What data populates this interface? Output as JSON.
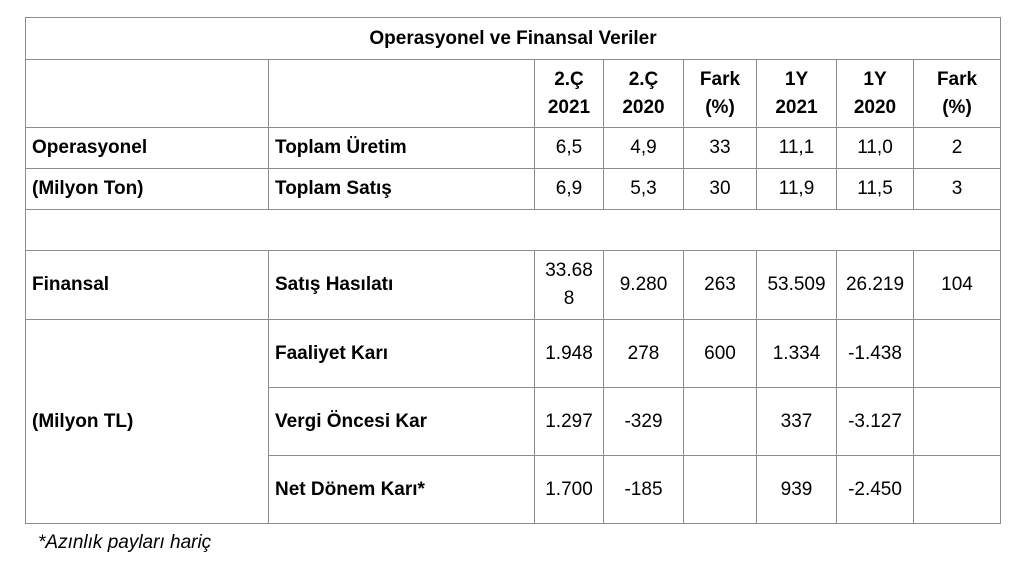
{
  "title": "Operasyonel ve Finansal Veriler",
  "columns": [
    {
      "l1": "2.Ç",
      "l2": "2021"
    },
    {
      "l1": "2.Ç",
      "l2": "2020"
    },
    {
      "l1": "Fark",
      "l2": "(%)"
    },
    {
      "l1": "1Y",
      "l2": "2021"
    },
    {
      "l1": "1Y",
      "l2": "2020"
    },
    {
      "l1": "Fark",
      "l2": "(%)"
    }
  ],
  "operational": {
    "label1": "Operasyonel",
    "label2": "(Milyon Ton)",
    "rows": [
      {
        "name": "Toplam Üretim",
        "values": [
          "6,5",
          "4,9",
          "33",
          "11,1",
          "11,0",
          "2"
        ]
      },
      {
        "name": "Toplam Satış",
        "values": [
          "6,9",
          "5,3",
          "30",
          "11,9",
          "11,5",
          "3"
        ]
      }
    ]
  },
  "financial": {
    "label1": "Finansal",
    "label2": "(Milyon TL)",
    "rows": [
      {
        "name": "Satış Hasılatı",
        "values": [
          "33.688",
          "9.280",
          "263",
          "53.509",
          "26.219",
          "104"
        ]
      },
      {
        "name": "Faaliyet Karı",
        "values": [
          "1.948",
          "278",
          "600",
          "1.334",
          "-1.438",
          ""
        ]
      },
      {
        "name": "Vergi Öncesi Kar",
        "values": [
          "1.297",
          "-329",
          "",
          "337",
          "-3.127",
          ""
        ]
      },
      {
        "name": "Net Dönem Karı*",
        "values": [
          "1.700",
          "-185",
          "",
          "939",
          "-2.450",
          ""
        ]
      }
    ]
  },
  "footnote": "*Azınlık payları hariç"
}
